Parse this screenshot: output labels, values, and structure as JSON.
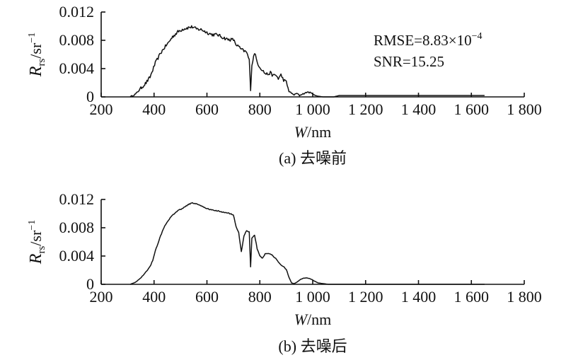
{
  "chart_data": [
    {
      "type": "line",
      "caption": "(a) 去噪前",
      "ylabel_main": "R",
      "ylabel_sub": "rs",
      "ylabel_unit": "/sr",
      "ylabel_sup": "−1",
      "xlabel_main": "W",
      "xlabel_unit": "/nm",
      "xlim": [
        200,
        1800
      ],
      "ylim": [
        0,
        0.012
      ],
      "xticks": [
        200,
        400,
        600,
        800,
        1000,
        1200,
        1400,
        1600,
        1800
      ],
      "xtick_labels": [
        "200",
        "400",
        "600",
        "800",
        "1 000",
        "1 200",
        "1 400",
        "1 600",
        "1 800"
      ],
      "yticks": [
        0,
        0.004,
        0.008,
        0.012
      ],
      "ytick_labels": [
        "0",
        "0.004",
        "0.008",
        "0.012"
      ],
      "annotations": {
        "rmse_prefix": "RMSE=8.83×10",
        "rmse_exp": "−4",
        "snr": "SNR=15.25"
      },
      "series": [
        {
          "noisy": true,
          "x": [
            310,
            330,
            350,
            370,
            385,
            395,
            405,
            415,
            425,
            440,
            455,
            470,
            490,
            510,
            530,
            545,
            560,
            580,
            600,
            620,
            640,
            660,
            680,
            700,
            710,
            720,
            730,
            740,
            750,
            760,
            765,
            770,
            780,
            790,
            800,
            810,
            820,
            830,
            840,
            850,
            860,
            870,
            880,
            890,
            900,
            910,
            920,
            930,
            940,
            950,
            960,
            970,
            980,
            990,
            1000,
            1010,
            1020,
            1040,
            1060,
            1080,
            1100,
            1150,
            1200,
            1300,
            1400,
            1500,
            1600,
            1650
          ],
          "y": [
            0.0,
            0.0004,
            0.0012,
            0.002,
            0.0028,
            0.0038,
            0.0048,
            0.0055,
            0.0062,
            0.007,
            0.0077,
            0.0085,
            0.0092,
            0.0096,
            0.0098,
            0.0099,
            0.0096,
            0.0095,
            0.0091,
            0.0088,
            0.0088,
            0.0084,
            0.0081,
            0.0081,
            0.0074,
            0.0071,
            0.0067,
            0.0065,
            0.0063,
            0.0052,
            0.0011,
            0.0045,
            0.0063,
            0.0049,
            0.0042,
            0.0038,
            0.0033,
            0.0032,
            0.0034,
            0.003,
            0.0031,
            0.0026,
            0.0031,
            0.0024,
            0.0021,
            0.0008,
            0.0005,
            0.0003,
            0.0005,
            0.0002,
            0.0004,
            0.0005,
            0.0007,
            0.0006,
            0.0004,
            0.0002,
            0.0001,
            0.0,
            0.0,
            0.0,
            0.0002,
            0.0002,
            0.0002,
            0.0002,
            0.0002,
            0.0002,
            0.0002,
            0.0002
          ]
        }
      ]
    },
    {
      "type": "line",
      "caption": "(b) 去噪后",
      "ylabel_main": "R",
      "ylabel_sub": "rs",
      "ylabel_unit": "/sr",
      "ylabel_sup": "−1",
      "xlabel_main": "W",
      "xlabel_unit": "/nm",
      "xlim": [
        200,
        1800
      ],
      "ylim": [
        0,
        0.012
      ],
      "xticks": [
        200,
        400,
        600,
        800,
        1000,
        1200,
        1400,
        1600,
        1800
      ],
      "xtick_labels": [
        "200",
        "400",
        "600",
        "800",
        "1 000",
        "1 200",
        "1 400",
        "1 600",
        "1 800"
      ],
      "yticks": [
        0,
        0.004,
        0.008,
        0.012
      ],
      "ytick_labels": [
        "0",
        "0.004",
        "0.008",
        "0.012"
      ],
      "series": [
        {
          "noisy": false,
          "x": [
            310,
            330,
            350,
            370,
            385,
            395,
            405,
            415,
            425,
            440,
            455,
            470,
            490,
            510,
            530,
            545,
            560,
            580,
            600,
            620,
            640,
            660,
            680,
            700,
            710,
            720,
            730,
            740,
            750,
            760,
            765,
            770,
            780,
            790,
            800,
            810,
            820,
            830,
            840,
            850,
            860,
            870,
            880,
            890,
            900,
            910,
            920,
            930,
            940,
            950,
            960,
            970,
            980,
            990,
            1000,
            1010,
            1020,
            1040,
            1060,
            1080,
            1100,
            1150,
            1200,
            1300,
            1400,
            1500,
            1600,
            1650
          ],
          "y": [
            0.0,
            0.0003,
            0.0009,
            0.0018,
            0.0025,
            0.0034,
            0.0048,
            0.0058,
            0.0069,
            0.0082,
            0.0091,
            0.0098,
            0.0104,
            0.0108,
            0.0113,
            0.0115,
            0.0114,
            0.0111,
            0.0107,
            0.0105,
            0.0104,
            0.0102,
            0.0101,
            0.0098,
            0.0082,
            0.0073,
            0.0046,
            0.0068,
            0.0076,
            0.0074,
            0.0025,
            0.0065,
            0.007,
            0.005,
            0.004,
            0.0037,
            0.0043,
            0.0044,
            0.0043,
            0.004,
            0.0037,
            0.0032,
            0.0027,
            0.0025,
            0.0021,
            0.001,
            0.0002,
            0.0001,
            0.0003,
            0.0006,
            0.0008,
            0.0009,
            0.0009,
            0.0008,
            0.0006,
            0.0004,
            0.0002,
            0.0001,
            0.0,
            0.0,
            0.0,
            0.0,
            0.0,
            0.0,
            0.0,
            0.0,
            0.0,
            0.0
          ]
        }
      ]
    }
  ]
}
